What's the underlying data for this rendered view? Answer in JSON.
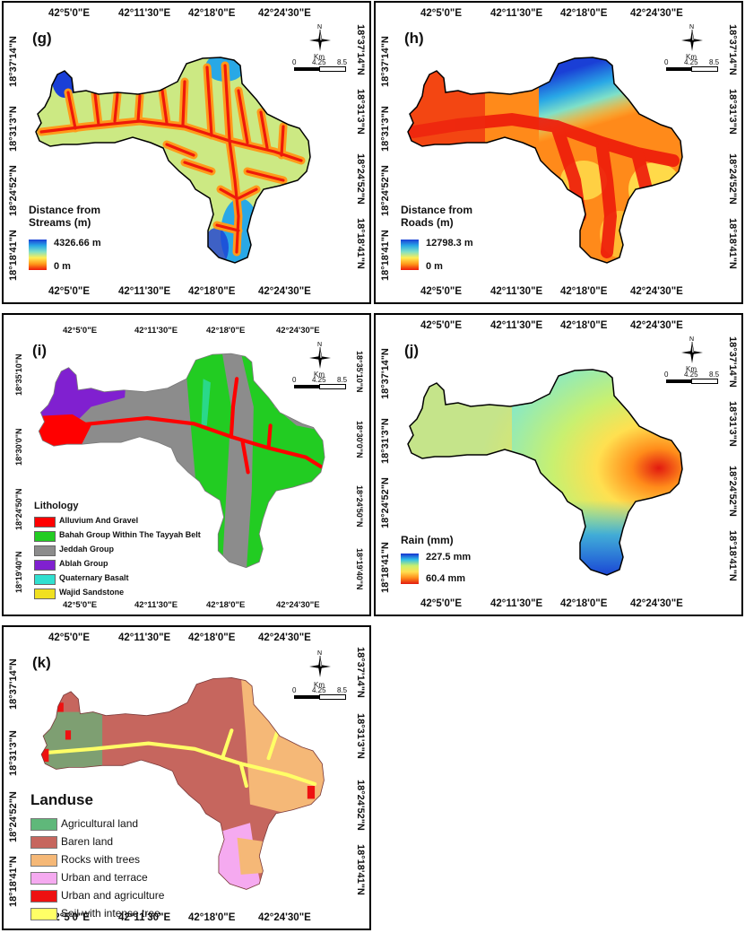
{
  "panels": {
    "g": {
      "label": "(g)",
      "lon_ticks": [
        "42°5'0\"E",
        "42°11'30\"E",
        "42°18'0\"E",
        "42°24'30\"E"
      ],
      "lat_ticks": [
        "18°37'14\"N",
        "18°31'3\"N",
        "18°24'52\"N",
        "18°18'41\"N"
      ],
      "legend_title_1": "Distance from",
      "legend_title_2": "Streams (m)",
      "max_label": "4326.66 m",
      "min_label": "0 m",
      "colormap": [
        "#1a3fd6",
        "#29a8e6",
        "#7fe0c8",
        "#ffee55",
        "#ff9a1a",
        "#ee1a0a"
      ]
    },
    "h": {
      "label": "(h)",
      "lon_ticks": [
        "42°5'0\"E",
        "42°11'30\"E",
        "42°18'0\"E",
        "42°24'30\"E"
      ],
      "lat_ticks": [
        "18°37'14\"N",
        "18°31'3\"N",
        "18°24'52\"N",
        "18°18'41\"N"
      ],
      "legend_title_1": "Distance from",
      "legend_title_2": "Roads (m)",
      "max_label": "12798.3 m",
      "min_label": "0 m"
    },
    "i": {
      "label": "(i)",
      "lon_ticks": [
        "42°5'0\"E",
        "42°11'30\"E",
        "42°18'0\"E",
        "42°24'30\"E"
      ],
      "lat_ticks": [
        "18°35'10\"N",
        "18°30'0\"N",
        "18°24'50\"N",
        "18°19'40\"N"
      ],
      "legend_title": "Lithology",
      "legend": [
        {
          "label": "Alluvium And Gravel",
          "color": "#ff0000"
        },
        {
          "label": "Bahah Group Within The Tayyah Belt",
          "color": "#22cc22"
        },
        {
          "label": "Jeddah Group",
          "color": "#8c8c8c"
        },
        {
          "label": "Ablah Group",
          "color": "#8020d0"
        },
        {
          "label": "Quaternary Basalt",
          "color": "#30e0d0"
        },
        {
          "label": "Wajid Sandstone",
          "color": "#f0e020"
        }
      ]
    },
    "j": {
      "label": "(j)",
      "lon_ticks": [
        "42°5'0\"E",
        "42°11'30\"E",
        "42°18'0\"E",
        "42°24'30\"E"
      ],
      "lat_ticks": [
        "18°37'14\"N",
        "18°31'3\"N",
        "18°24'52\"N",
        "18°18'41\"N"
      ],
      "legend_title": "Rain (mm)",
      "max_label": "227.5 mm",
      "min_label": "60.4 mm"
    },
    "k": {
      "label": "(k)",
      "lon_ticks": [
        "42°5'0\"E",
        "42°11'30\"E",
        "42°18'0\"E",
        "42°24'30\"E"
      ],
      "lat_ticks": [
        "18°37'14\"N",
        "18°31'3\"N",
        "18°24'52\"N",
        "18°18'41\"N"
      ],
      "legend_title": "Landuse",
      "legend": [
        {
          "label": "Agricultural land",
          "color": "#5fb87a"
        },
        {
          "label": "Baren land",
          "color": "#c6665e"
        },
        {
          "label": "Rocks with trees",
          "color": "#f5b877"
        },
        {
          "label": "Urban and terrace",
          "color": "#f5aaf0"
        },
        {
          "label": "Urban and agriculture",
          "color": "#ee1111"
        },
        {
          "label": "Soil with intense tree",
          "color": "#ffff66"
        }
      ]
    }
  },
  "north_arrow": {
    "letter": "N"
  },
  "scalebar": {
    "unit": "Km",
    "labels": [
      "0",
      "4.25",
      "8.5"
    ]
  }
}
